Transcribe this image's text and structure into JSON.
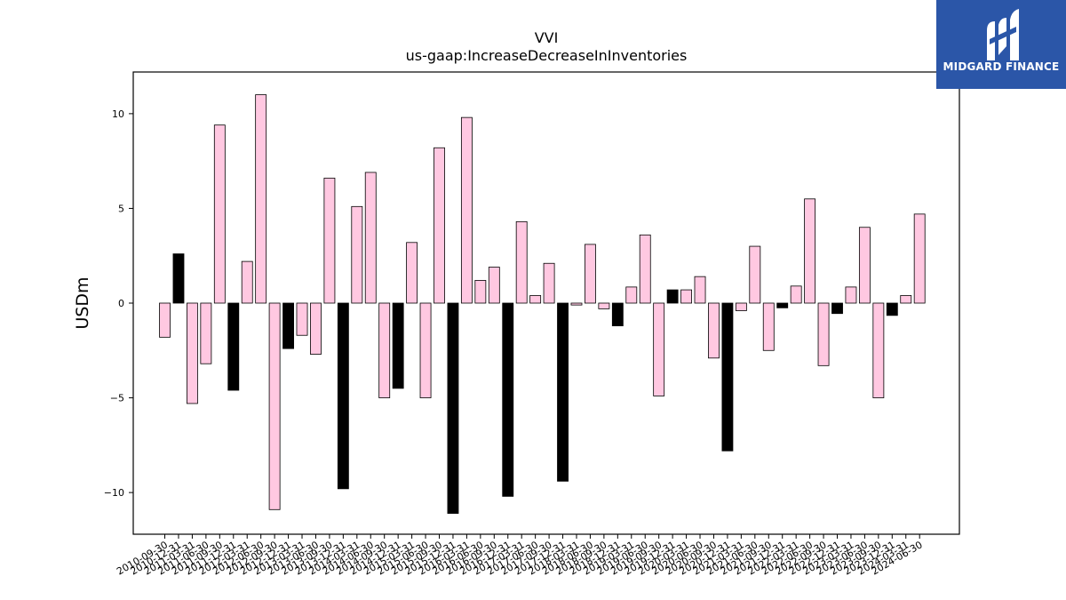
{
  "brand": {
    "name": "MIDGARD FINANCE",
    "logo_icon": "midgard-m-logo-icon",
    "color": "#2b56a8"
  },
  "chart_data": {
    "type": "bar",
    "title": "VVI",
    "subtitle": "us-gaap:IncreaseDecreaseInInventories",
    "xlabel": "",
    "ylabel": "USDm",
    "ylim": [
      -12.2,
      12.2
    ],
    "yticks": [
      10,
      5,
      0,
      -5,
      -10
    ],
    "ytick_labels": [
      "10",
      "5",
      "0",
      "−5",
      "−10"
    ],
    "grid": false,
    "colors": {
      "q4": "#000000",
      "other": "#ffc8e1",
      "edge": "#000000"
    },
    "categories": [
      "2010-09-30",
      "2010-12-31",
      "2011-03-31",
      "2011-06-30",
      "2011-09-30",
      "2011-12-31",
      "2012-03-31",
      "2012-06-30",
      "2012-09-30",
      "2012-12-31",
      "2013-03-31",
      "2013-06-30",
      "2013-09-30",
      "2013-12-31",
      "2014-03-31",
      "2014-06-30",
      "2014-09-30",
      "2014-12-31",
      "2015-03-31",
      "2015-06-30",
      "2015-09-30",
      "2015-12-31",
      "2016-03-31",
      "2016-06-30",
      "2016-09-30",
      "2016-12-31",
      "2017-03-31",
      "2017-06-30",
      "2017-09-30",
      "2017-12-31",
      "2018-03-31",
      "2018-06-30",
      "2018-09-30",
      "2018-12-31",
      "2019-03-31",
      "2019-06-30",
      "2019-09-30",
      "2019-12-31",
      "2020-03-31",
      "2020-06-30",
      "2020-09-30",
      "2020-12-31",
      "2021-03-31",
      "2021-06-30",
      "2021-09-30",
      "2021-12-31",
      "2022-03-31",
      "2022-06-30",
      "2022-09-30",
      "2022-12-31",
      "2023-03-31",
      "2023-06-30",
      "2023-09-30",
      "2023-12-31",
      "2024-03-31",
      "2024-06-30"
    ],
    "values": [
      -1.8,
      2.6,
      -5.3,
      -3.2,
      9.4,
      -4.6,
      2.2,
      11.0,
      -10.9,
      -2.4,
      -1.7,
      -2.7,
      6.6,
      -9.8,
      5.1,
      6.9,
      -5.0,
      -4.5,
      3.2,
      -5.0,
      8.2,
      -11.1,
      9.8,
      1.2,
      1.9,
      -10.2,
      4.3,
      0.4,
      2.1,
      -9.4,
      -0.1,
      3.1,
      -0.3,
      -1.2,
      0.85,
      3.6,
      -4.9,
      0.7,
      0.7,
      1.4,
      -2.9,
      -7.8,
      -0.4,
      3.0,
      -2.5,
      -0.25,
      0.9,
      5.5,
      -3.3,
      -0.55,
      0.85,
      4.0,
      -5.0,
      -0.65,
      0.4,
      4.7
    ]
  }
}
